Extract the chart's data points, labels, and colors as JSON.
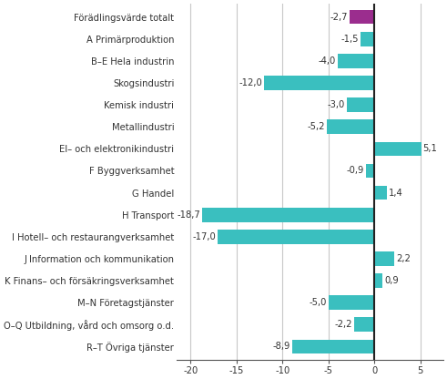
{
  "categories": [
    "Förädlingsvärde totalt",
    "A Primärproduktion",
    "B–E Hela industrin",
    "Skogsindustri",
    "Kemisk industri",
    "Metallindustri",
    "El– och elektronikindustri",
    "F Byggverksamhet",
    "G Handel",
    "H Transport",
    "I Hotell– och restaurangverksamhet",
    "J Information och kommunikation",
    "K Finans– och försäkringsverksamhet",
    "M–N Företagstjänster",
    "O–Q Utbildning, vård och omsorg o.d.",
    "R–T Övriga tjänster"
  ],
  "values": [
    -2.7,
    -1.5,
    -4.0,
    -12.0,
    -3.0,
    -5.2,
    5.1,
    -0.9,
    1.4,
    -18.7,
    -17.0,
    2.2,
    0.9,
    -5.0,
    -2.2,
    -8.9
  ],
  "bar_colors": [
    "#9b2d8e",
    "#3abfbf",
    "#3abfbf",
    "#3abfbf",
    "#3abfbf",
    "#3abfbf",
    "#3abfbf",
    "#3abfbf",
    "#3abfbf",
    "#3abfbf",
    "#3abfbf",
    "#3abfbf",
    "#3abfbf",
    "#3abfbf",
    "#3abfbf",
    "#3abfbf"
  ],
  "xlim": [
    -21.5,
    7.5
  ],
  "xticks": [
    -20,
    -15,
    -10,
    -5,
    0,
    5
  ],
  "background_color": "#ffffff",
  "grid_color": "#c8c8c8",
  "label_fontsize": 7.2,
  "value_fontsize": 7.2
}
